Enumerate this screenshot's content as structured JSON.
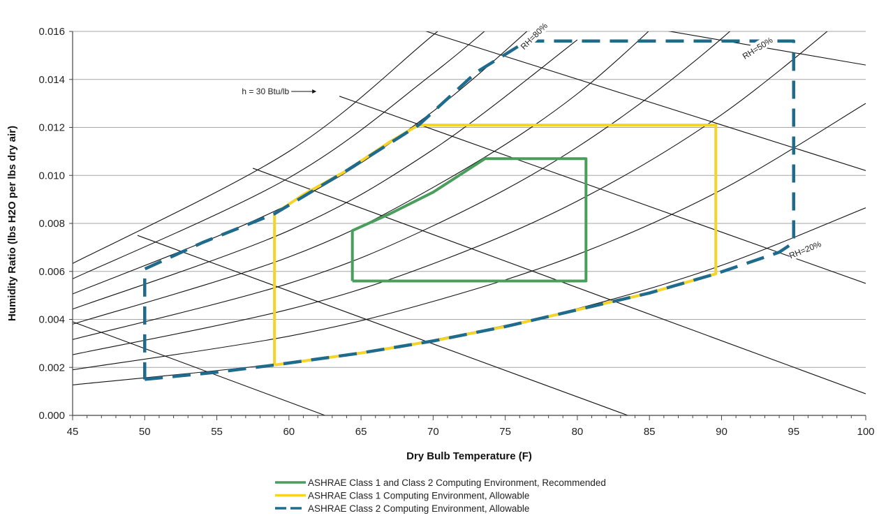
{
  "chart_data": {
    "type": "line",
    "title": "",
    "xlabel": "Dry Bulb Temperature (F)",
    "ylabel": "Humidity Ratio (lbs H2O per lbs dry air)",
    "xlim": [
      45,
      100
    ],
    "ylim": [
      0,
      0.016
    ],
    "x_ticks": [
      "45",
      "50",
      "55",
      "60",
      "65",
      "70",
      "75",
      "80",
      "85",
      "90",
      "95",
      "100"
    ],
    "y_ticks": [
      "0.000",
      "0.002",
      "0.004",
      "0.006",
      "0.008",
      "0.010",
      "0.012",
      "0.014",
      "0.016"
    ],
    "grid": "horizontal",
    "legend_position": "bottom-center",
    "annotations": [
      {
        "text": "RH=80%",
        "x": 77.0,
        "y": 0.0158
      },
      {
        "text": "RH=50%",
        "x": 92.5,
        "y": 0.0153
      },
      {
        "text": "RH=20%",
        "x": 95.8,
        "y": 0.0069
      },
      {
        "text": "h = 30 Btu/lb",
        "x": 60.5,
        "y": 0.0135
      }
    ],
    "background_lines": {
      "relative_humidity_curves": [
        [
          [
            45,
            0.00127
          ],
          [
            60,
            0.0022
          ],
          [
            70,
            0.00315
          ],
          [
            80,
            0.00445
          ],
          [
            90,
            0.00625
          ],
          [
            100,
            0.00865
          ]
        ],
        [
          [
            45,
            0.0019
          ],
          [
            60,
            0.0033
          ],
          [
            70,
            0.00475
          ],
          [
            80,
            0.0067
          ],
          [
            90,
            0.0094
          ],
          [
            100,
            0.013
          ]
        ],
        [
          [
            45,
            0.00253
          ],
          [
            60,
            0.00442
          ],
          [
            70,
            0.00632
          ],
          [
            80,
            0.00893
          ],
          [
            90,
            0.01253
          ],
          [
            100,
            0.01733
          ]
        ],
        [
          [
            45,
            0.00316
          ],
          [
            60,
            0.0055
          ],
          [
            70,
            0.0079
          ],
          [
            80,
            0.01118
          ],
          [
            90,
            0.0157
          ],
          [
            100,
            0.0215
          ]
        ],
        [
          [
            45,
            0.0038
          ],
          [
            60,
            0.0066
          ],
          [
            70,
            0.0095
          ],
          [
            80,
            0.0134
          ],
          [
            90,
            0.0189
          ]
        ],
        [
          [
            45,
            0.00443
          ],
          [
            60,
            0.0077
          ],
          [
            70,
            0.01108
          ],
          [
            80,
            0.01565
          ]
        ],
        [
          [
            45,
            0.00506
          ],
          [
            60,
            0.0088
          ],
          [
            70,
            0.01267
          ],
          [
            80,
            0.0179
          ]
        ],
        [
          [
            45,
            0.00569
          ],
          [
            60,
            0.0099
          ],
          [
            70,
            0.01425
          ],
          [
            77,
            0.0178
          ]
        ],
        [
          [
            45,
            0.00633
          ],
          [
            60,
            0.011
          ],
          [
            70,
            0.01585
          ],
          [
            74,
            0.0178
          ]
        ]
      ],
      "enthalpy_lines": [
        [
          [
            45,
            0.0039
          ],
          [
            62.5,
            0.0
          ]
        ],
        [
          [
            49.5,
            0.0075
          ],
          [
            83.5,
            0.0
          ]
        ],
        [
          [
            57.5,
            0.0103
          ],
          [
            100,
            0.0009
          ]
        ],
        [
          [
            63.5,
            0.0133
          ],
          [
            100,
            0.0055
          ]
        ],
        [
          [
            68.5,
            0.0162
          ],
          [
            100,
            0.0102
          ]
        ],
        [
          [
            84.5,
            0.0162
          ],
          [
            100,
            0.0146
          ]
        ]
      ]
    },
    "series": [
      {
        "name": "ASHRAE Class 1 and Class 2 Computing Environment, Recommended",
        "color": "#4a9e5c",
        "dash": "solid",
        "x": [
          64.4,
          64.4,
          80.6,
          80.6,
          73.6,
          70.0,
          67.0,
          64.4
        ],
        "y": [
          0.0056,
          0.0077,
          0.0056,
          0.0107,
          0.0107,
          0.0093,
          0.0084,
          0.0077
        ],
        "points": [
          [
            64.4,
            0.0056
          ],
          [
            80.6,
            0.0056
          ],
          [
            80.6,
            0.0107
          ],
          [
            73.6,
            0.0107
          ],
          [
            70.0,
            0.0093
          ],
          [
            67.0,
            0.0084
          ],
          [
            64.4,
            0.0077
          ],
          [
            64.4,
            0.0056
          ]
        ]
      },
      {
        "name": "ASHRAE Class 1 Computing Environment, Allowable",
        "color": "#f5d327",
        "dash": "solid",
        "points": [
          [
            59,
            0.0021
          ],
          [
            65,
            0.0026
          ],
          [
            70,
            0.0031
          ],
          [
            75,
            0.0037
          ],
          [
            80,
            0.0044
          ],
          [
            85,
            0.0051
          ],
          [
            89.6,
            0.0059
          ],
          [
            89.6,
            0.0121
          ],
          [
            69.0,
            0.0121
          ],
          [
            67,
            0.0114
          ],
          [
            64,
            0.0102
          ],
          [
            61,
            0.0092
          ],
          [
            59,
            0.0084
          ],
          [
            59,
            0.0021
          ]
        ]
      },
      {
        "name": "ASHRAE Class 2 Computing Environment, Allowable",
        "color": "#1f6b8e",
        "dash": "dashed",
        "points": [
          [
            50,
            0.0015
          ],
          [
            55,
            0.0018
          ],
          [
            59,
            0.0021
          ],
          [
            65,
            0.0026
          ],
          [
            70,
            0.0031
          ],
          [
            75,
            0.0037
          ],
          [
            80,
            0.0044
          ],
          [
            85,
            0.0051
          ],
          [
            89.6,
            0.0059
          ],
          [
            94,
            0.0068
          ],
          [
            95,
            0.0072
          ],
          [
            95,
            0.0156
          ],
          [
            76.5,
            0.0156
          ],
          [
            73,
            0.0143
          ],
          [
            69,
            0.0121
          ],
          [
            64,
            0.0102
          ],
          [
            59,
            0.0084
          ],
          [
            54,
            0.0072
          ],
          [
            50,
            0.0061
          ],
          [
            50,
            0.0015
          ]
        ]
      }
    ]
  },
  "legend": {
    "items": [
      {
        "label": "ASHRAE Class 1 and Class 2 Computing Environment, Recommended",
        "color": "#4a9e5c",
        "dash": "solid"
      },
      {
        "label": "ASHRAE Class 1 Computing Environment, Allowable",
        "color": "#f5d327",
        "dash": "solid"
      },
      {
        "label": "ASHRAE Class 2 Computing Environment, Allowable",
        "color": "#1f6b8e",
        "dash": "dashed"
      }
    ]
  }
}
